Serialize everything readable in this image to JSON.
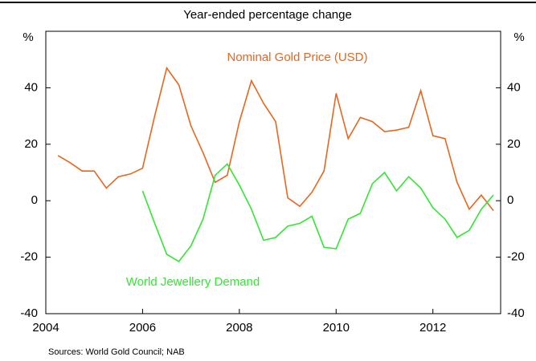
{
  "chart_data": {
    "type": "line",
    "title": "Year-ended percentage change",
    "y_label": "%",
    "y2_label": "%",
    "source": "Sources: World Gold Council; NAB",
    "x": [
      2004.25,
      2004.5,
      2004.75,
      2005,
      2005.25,
      2005.5,
      2005.75,
      2006,
      2006.25,
      2006.5,
      2006.75,
      2007,
      2007.25,
      2007.5,
      2007.75,
      2008,
      2008.25,
      2008.5,
      2008.75,
      2009,
      2009.25,
      2009.5,
      2009.75,
      2010,
      2010.25,
      2010.5,
      2010.75,
      2011,
      2011.25,
      2011.5,
      2011.75,
      2012,
      2012.25,
      2012.5,
      2012.75,
      2013,
      2013.25
    ],
    "series": [
      {
        "name": "Nominal Gold Price (USD)",
        "color": "#e8661e",
        "values": [
          16,
          13.5,
          10.5,
          10.5,
          4.5,
          8.5,
          9.5,
          11.5,
          30,
          47,
          41,
          26.5,
          17,
          6.5,
          9,
          28,
          42.5,
          34.5,
          28,
          1,
          -2,
          3,
          10.5,
          38,
          22,
          29.5,
          28,
          24.5,
          25,
          26,
          39,
          23,
          22,
          6.5,
          -3,
          2,
          -3.5
        ]
      },
      {
        "name": "World Jewellery Demand",
        "color": "#33e633",
        "values": [
          null,
          null,
          null,
          null,
          null,
          null,
          null,
          3.5,
          -8,
          -19,
          -21.5,
          -16,
          -6.5,
          9,
          13,
          5.5,
          -3,
          -14,
          -13,
          -9,
          -8,
          -5.5,
          -16.5,
          -17,
          -6.5,
          -4.5,
          6,
          10,
          3.5,
          8.5,
          4.5,
          -2.5,
          -6.5,
          -13,
          -10.5,
          -3,
          2
        ]
      }
    ],
    "xlim": [
      2004,
      2013.4
    ],
    "xticks": [
      2004,
      2006,
      2008,
      2010,
      2012
    ],
    "ylim": [
      -40,
      60
    ],
    "yticks": [
      -40,
      -20,
      0,
      20,
      40
    ],
    "y2lim": [
      -40,
      60
    ],
    "y2ticks": [
      -40,
      -20,
      0,
      20,
      40
    ]
  }
}
